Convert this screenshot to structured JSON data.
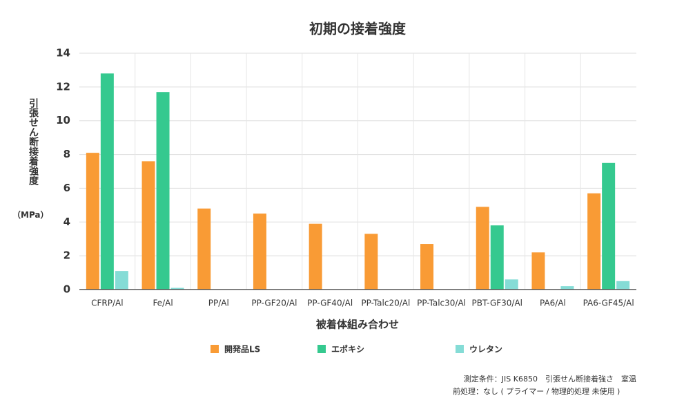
{
  "chart_data": {
    "type": "bar",
    "title": "初期の接着強度",
    "ylabel": "引張せん断接着強度",
    "ylabel_unit": "（MPa）",
    "xlabel": "被着体組み合わせ",
    "categories": [
      "CFRP/Al",
      "Fe/Al",
      "PP/Al",
      "PP-GF20/Al",
      "PP-GF40/Al",
      "PP-Talc20/Al",
      "PP-Talc30/Al",
      "PBT-GF30/Al",
      "PA6/Al",
      "PA6-GF45/Al"
    ],
    "series": [
      {
        "name": "開発品LS",
        "color": "#f99b35",
        "values": [
          8.1,
          7.6,
          4.8,
          4.5,
          3.9,
          3.3,
          2.7,
          4.9,
          2.2,
          5.7
        ]
      },
      {
        "name": "エポキシ",
        "color": "#35c98f",
        "values": [
          12.8,
          11.7,
          null,
          null,
          null,
          null,
          null,
          3.8,
          null,
          7.5
        ]
      },
      {
        "name": "ウレタン",
        "color": "#85dcd6",
        "values": [
          1.1,
          0.1,
          null,
          null,
          null,
          null,
          null,
          0.6,
          0.2,
          0.5
        ]
      }
    ],
    "ylim": [
      0,
      14
    ],
    "yticks": [
      0,
      2,
      4,
      6,
      8,
      10,
      12,
      14
    ],
    "grid": true,
    "legend": "bottom",
    "notes": [
      "測定条件：JIS K6850　引張せん断接着強さ　室温",
      "前処理：なし ( プライマー / 物理的処理 未使用 )"
    ]
  }
}
